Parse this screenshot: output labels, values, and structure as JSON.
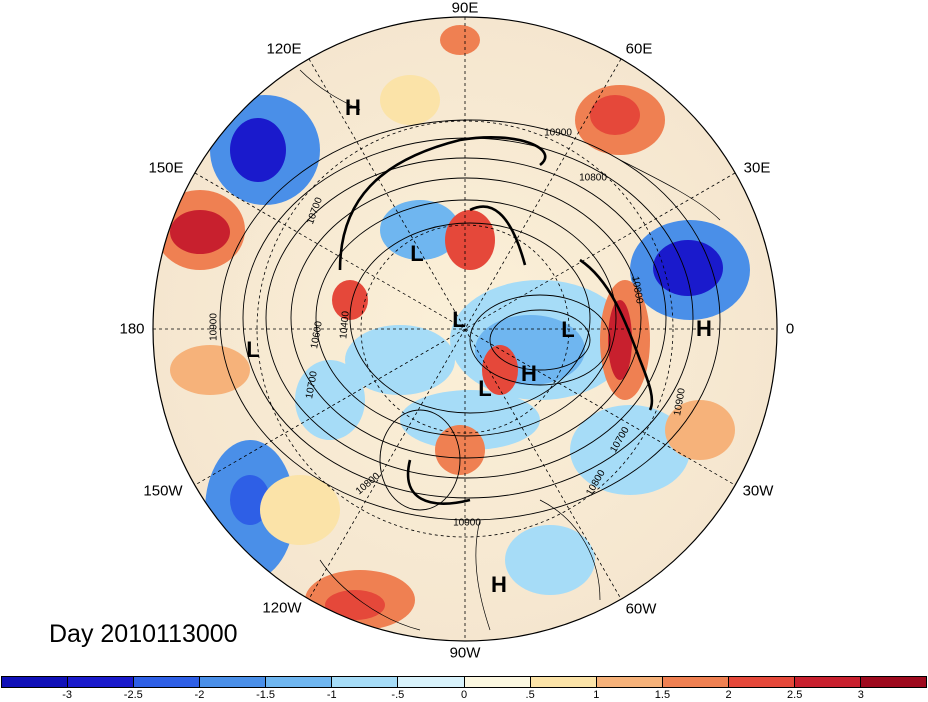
{
  "map": {
    "title": "Day 2010113000",
    "longitude_labels": [
      {
        "key": "n90e",
        "text": "90E"
      },
      {
        "key": "n60e",
        "text": "60E"
      },
      {
        "key": "n30e",
        "text": "30E"
      },
      {
        "key": "n0",
        "text": "0"
      },
      {
        "key": "n30w",
        "text": "30W"
      },
      {
        "key": "n60w",
        "text": "60W"
      },
      {
        "key": "n90w",
        "text": "90W"
      },
      {
        "key": "n120w",
        "text": "120W"
      },
      {
        "key": "n150w",
        "text": "150W"
      },
      {
        "key": "n180",
        "text": "180"
      },
      {
        "key": "n150e",
        "text": "150E"
      },
      {
        "key": "n120e",
        "text": "120E"
      }
    ],
    "pressure_centers": [
      {
        "text": "H"
      },
      {
        "text": "L"
      },
      {
        "text": "L"
      },
      {
        "text": "L"
      },
      {
        "text": "H"
      },
      {
        "text": "L"
      },
      {
        "text": "H"
      },
      {
        "text": "H"
      },
      {
        "text": "L"
      }
    ],
    "contour_labels": [
      "10900",
      "10800",
      "10700",
      "10600",
      "10400",
      "10700",
      "10800",
      "10900",
      "10800",
      "10700",
      "10800",
      "10900",
      "10900"
    ],
    "colorbar": {
      "ticks": [
        "-3",
        "-2.5",
        "-2",
        "-1.5",
        "-1",
        "-.5",
        "0",
        ".5",
        "1",
        "1.5",
        "2",
        "2.5",
        "3"
      ],
      "colors": [
        "#1a1acc",
        "#2e5fe6",
        "#4a8fe8",
        "#6fb6f0",
        "#a6dcf7",
        "#d8f2fb",
        "#fbf7e0",
        "#fbe3a8",
        "#f6b27a",
        "#ef8052",
        "#e5483a",
        "#c8202e",
        "#9e0a1e"
      ]
    }
  }
}
